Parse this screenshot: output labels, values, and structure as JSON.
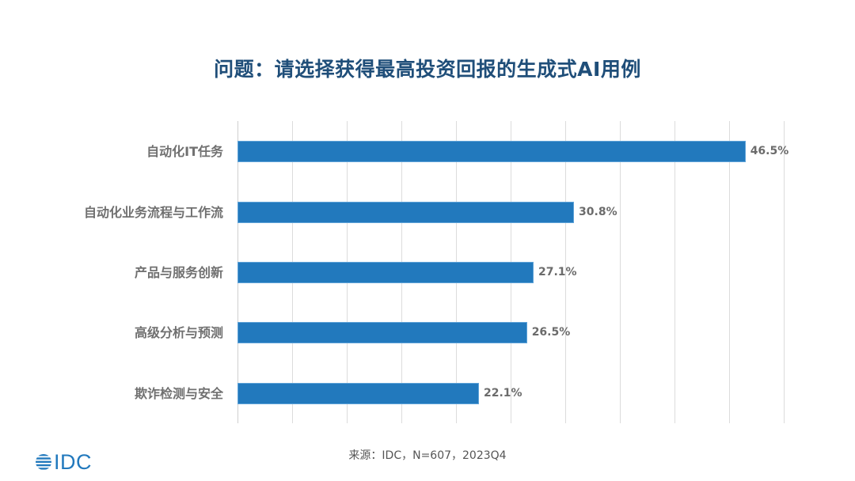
{
  "title": "问题：请选择获得最高投资回报的生成式AI用例",
  "source": "来源：IDC，N=607，2023Q4",
  "logo": {
    "text": "IDC",
    "icon": "idc-globe-icon"
  },
  "colors": {
    "bar": "#2279bd",
    "title": "#1f4e79",
    "label": "#707070",
    "grid": "#dcdcdc"
  },
  "chart_data": {
    "type": "bar",
    "orientation": "horizontal",
    "title": "问题：请选择获得最高投资回报的生成式AI用例",
    "categories": [
      "自动化IT任务",
      "自动化业务流程与工作流",
      "产品与服务创新",
      "高级分析与预测",
      "欺诈检测与安全"
    ],
    "values": [
      46.5,
      30.8,
      27.1,
      26.5,
      22.1
    ],
    "labels": [
      "46.5%",
      "30.8%",
      "27.1%",
      "26.5%",
      "22.1%"
    ],
    "xlabel": "",
    "ylabel": "",
    "xlim": [
      0,
      50
    ],
    "grid_step": 5,
    "grid": true,
    "legend": "none",
    "unit": "%"
  }
}
